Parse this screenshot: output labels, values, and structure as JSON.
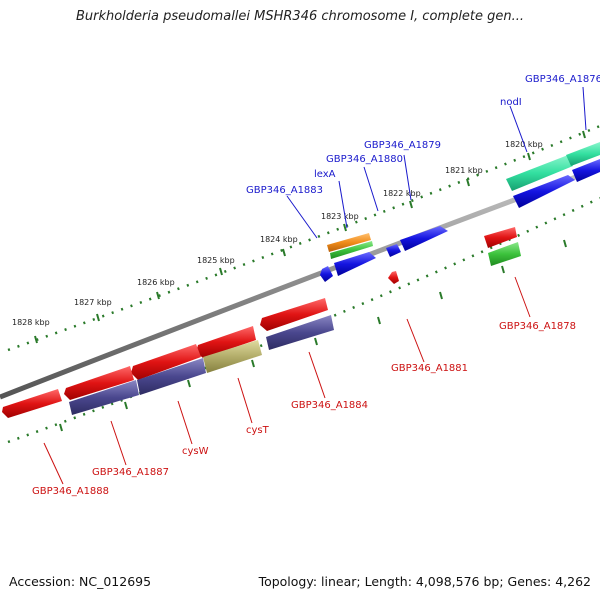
{
  "title": "Burkholderia pseudomallei MSHR346 chromosome I, complete gen...",
  "footer": {
    "accession": "Accession: NC_012695",
    "topology": "Topology: linear; Length: 4,098,576 bp; Genes: 4,262"
  },
  "colors": {
    "label_forward": "#1a1acc",
    "label_reverse": "#cc1111",
    "backbone": "#8c8c8c",
    "tick_marks": "#2a7a2a",
    "forward_gene": "#1414e0",
    "reverse_gene": "#e01414",
    "cds_purple": "#4a478e",
    "cds_olive": "#b3ad6a",
    "cds_teal": "#33e0a0",
    "orange_feature": "#f08c1a",
    "green_feature": "#3cc23c"
  },
  "ticks": [
    "1820 kbp",
    "1821 kbp",
    "1822 kbp",
    "1823 kbp",
    "1824 kbp",
    "1825 kbp",
    "1826 kbp",
    "1827 kbp",
    "1828 kbp"
  ],
  "forward_labels": [
    "GBP346_A1876",
    "nodI",
    "GBP346_A1879",
    "GBP346_A1880",
    "lexA",
    "GBP346_A1883"
  ],
  "reverse_labels": [
    "GBP346_A1878",
    "GBP346_A1881",
    "GBP346_A1884",
    "cysT",
    "cysW",
    "GBP346_A1887",
    "GBP346_A1888"
  ]
}
